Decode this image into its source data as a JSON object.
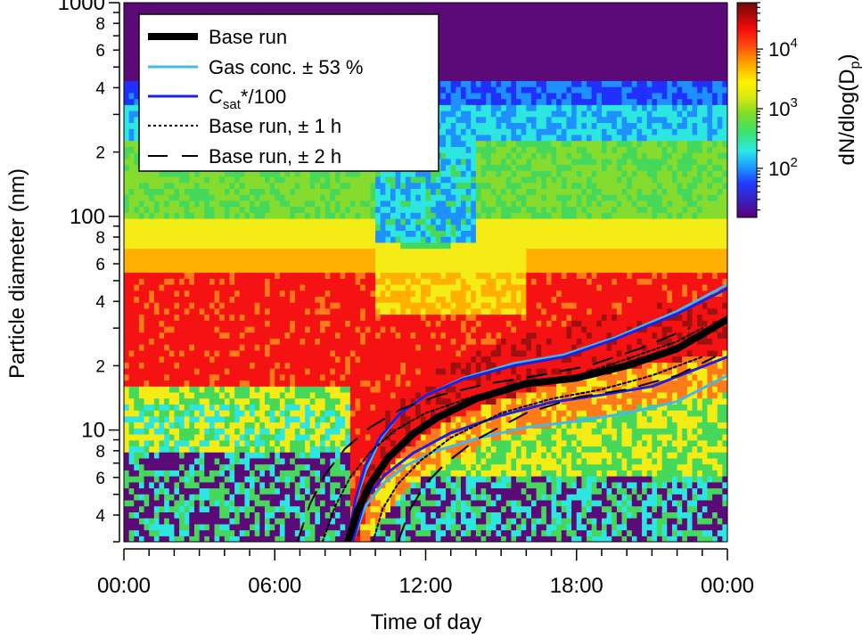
{
  "chart_data": {
    "type": "heatmap",
    "title": "",
    "xlabel": "Time of day",
    "ylabel": "Particle diameter (nm)",
    "x_ticks": [
      "00:00",
      "06:00",
      "12:00",
      "18:00",
      "00:00"
    ],
    "x_tick_hours": [
      0,
      6,
      12,
      18,
      24
    ],
    "xlim_hours": [
      0,
      24
    ],
    "y_scale": "log",
    "ylim_nm": [
      3,
      1000
    ],
    "y_major_ticks": [
      {
        "value": 10,
        "label": "10"
      },
      {
        "value": 100,
        "label": "100"
      },
      {
        "value": 1000,
        "label": "1000"
      }
    ],
    "y_minor_labels": [
      {
        "value": 4,
        "label": "4"
      },
      {
        "value": 6,
        "label": "6"
      },
      {
        "value": 8,
        "label": "8"
      },
      {
        "value": 20,
        "label": "2"
      },
      {
        "value": 40,
        "label": "4"
      },
      {
        "value": 60,
        "label": "6"
      },
      {
        "value": 80,
        "label": "8"
      },
      {
        "value": 200,
        "label": "2"
      },
      {
        "value": 400,
        "label": "4"
      },
      {
        "value": 600,
        "label": "6"
      },
      {
        "value": 800,
        "label": "8"
      }
    ],
    "colorbar": {
      "label_prefix": "dN/dlog(D",
      "label_sub": "p",
      "label_suffix": ")",
      "scale": "log",
      "range": [
        15,
        60000
      ],
      "ticks": [
        {
          "value": 100,
          "base": "10",
          "exp": "2"
        },
        {
          "value": 1000,
          "base": "10",
          "exp": "3"
        },
        {
          "value": 10000,
          "base": "10",
          "exp": "4"
        }
      ]
    },
    "legend": {
      "position": "top-left",
      "entries": [
        {
          "id": "base",
          "label": "Base run",
          "color": "#000000",
          "style": "solid-thick"
        },
        {
          "id": "gas",
          "label": "Gas conc. ± 53 %",
          "color": "#45B7E8",
          "style": "solid"
        },
        {
          "id": "csat",
          "label_main": "C",
          "label_sub": "sat",
          "label_rest": "*/100",
          "color": "#1F1FE0",
          "style": "solid"
        },
        {
          "id": "pm1",
          "label": "Base run, ± 1 h",
          "color": "#000000",
          "style": "dotted"
        },
        {
          "id": "pm2",
          "label": "Base run, ± 2 h",
          "color": "#000000",
          "style": "dashed"
        }
      ]
    },
    "series": [
      {
        "name": "Base run",
        "x": [
          8.9,
          9.3,
          9.8,
          10.5,
          11.5,
          12.5,
          14,
          16,
          18,
          20,
          22,
          24
        ],
        "y": [
          3,
          4.2,
          5.6,
          7.4,
          9.6,
          11.5,
          14,
          16.5,
          17.5,
          20,
          24,
          33
        ]
      },
      {
        "name": "Gas conc. + 53 %",
        "x": [
          8.9,
          9.2,
          9.6,
          10.2,
          11,
          12,
          13.5,
          15.5,
          17.5,
          19.5,
          22,
          24
        ],
        "y": [
          3,
          4.6,
          6.4,
          9.1,
          12,
          14.5,
          17.5,
          20.5,
          22.5,
          27,
          36,
          48
        ]
      },
      {
        "name": "Gas conc. − 53 %",
        "x": [
          9.1,
          9.6,
          10.3,
          11.2,
          12.3,
          14,
          16,
          18,
          20,
          22,
          24
        ],
        "y": [
          3,
          4.4,
          5.6,
          6.8,
          7.9,
          9.1,
          10.3,
          11,
          12,
          13.6,
          18
        ]
      },
      {
        "name": "Csat*/100 high",
        "x": [
          8.9,
          9.2,
          9.6,
          10.2,
          11,
          12,
          13.5,
          15.5,
          17.5,
          19.5,
          22,
          24
        ],
        "y": [
          3,
          4.7,
          6.8,
          9.3,
          12,
          14.5,
          17.3,
          20,
          22,
          26.5,
          35,
          46
        ]
      },
      {
        "name": "Csat*/100 low",
        "x": [
          9.1,
          9.6,
          10.4,
          11.5,
          13,
          15,
          17,
          19,
          21,
          24
        ],
        "y": [
          3,
          4.8,
          6.2,
          7.8,
          9.7,
          11.7,
          13.5,
          14.6,
          16,
          22
        ]
      },
      {
        "name": "Base run + 1 h",
        "x": [
          7.9,
          8.4,
          9,
          9.8,
          10.8,
          12,
          14,
          16,
          18,
          20,
          22,
          23
        ],
        "y": [
          3,
          4.4,
          6,
          7.9,
          10,
          12,
          14.5,
          16.5,
          18,
          21.5,
          26,
          30
        ]
      },
      {
        "name": "Base run − 1 h",
        "x": [
          9.9,
          10.3,
          10.9,
          11.8,
          13,
          15,
          17,
          19,
          21,
          23
        ],
        "y": [
          3,
          4.3,
          5.6,
          7.2,
          9.2,
          12,
          14,
          15.5,
          18,
          22
        ]
      },
      {
        "name": "Base run + 2 h",
        "x": [
          6.9,
          7.4,
          8,
          8.8,
          9.8,
          11,
          12.5,
          14.5,
          16.5,
          18.5,
          20.5,
          22.5
        ],
        "y": [
          3,
          4.5,
          6.2,
          8.2,
          10.3,
          12.5,
          14.5,
          16.5,
          18,
          20,
          24,
          30
        ]
      },
      {
        "name": "Base run − 2 h",
        "x": [
          10.9,
          11.4,
          12,
          12.8,
          14,
          16,
          18,
          20,
          22,
          23.5
        ],
        "y": [
          3,
          4.3,
          5.6,
          7,
          9,
          12,
          14.2,
          15.5,
          18,
          22
        ]
      }
    ],
    "heatmap_note": "Particle number size distribution: purple (low, <30 cm-3) to dark red (high, >1e4 cm-3)"
  }
}
